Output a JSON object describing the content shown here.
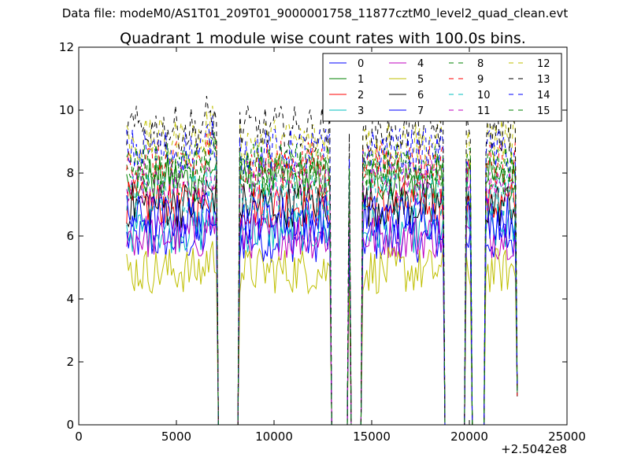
{
  "page": {
    "file_label": "Data file: modeM0/AS1T01_209T01_9000001758_11877cztM0_level2_quad_clean.evt"
  },
  "chart_data": {
    "type": "line",
    "title": "Quadrant 1 module wise count rates with 100.0s bins.",
    "xlabel": "",
    "ylabel": "",
    "x_offset_label": "+2.5042e8",
    "xlim": [
      0,
      25000
    ],
    "ylim": [
      0,
      12
    ],
    "x_ticks": [
      0,
      5000,
      10000,
      15000,
      20000,
      25000
    ],
    "y_ticks": [
      0,
      2,
      4,
      6,
      8,
      10,
      12
    ],
    "grid": false,
    "legend_position": "top-right",
    "legend_columns": 4,
    "segments": [
      [
        2450,
        7050
      ],
      [
        8250,
        12850
      ],
      [
        14550,
        18650
      ],
      [
        19850,
        20050
      ],
      [
        20850,
        22450
      ]
    ],
    "spikes": [
      13850,
      19750
    ],
    "series": [
      {
        "name": "0",
        "color": "#0000ff",
        "dash": "solid",
        "base": 5.9
      },
      {
        "name": "1",
        "color": "#008000",
        "dash": "solid",
        "base": 7.8
      },
      {
        "name": "2",
        "color": "#ff0000",
        "dash": "solid",
        "base": 7.0
      },
      {
        "name": "3",
        "color": "#00bfbf",
        "dash": "solid",
        "base": 6.2
      },
      {
        "name": "4",
        "color": "#bf00bf",
        "dash": "solid",
        "base": 6.0
      },
      {
        "name": "5",
        "color": "#bfbf00",
        "dash": "solid",
        "base": 4.9
      },
      {
        "name": "6",
        "color": "#000000",
        "dash": "solid",
        "base": 7.0
      },
      {
        "name": "7",
        "color": "#0000ff",
        "dash": "solid",
        "base": 6.6
      },
      {
        "name": "8",
        "color": "#008000",
        "dash": "dashed",
        "base": 8.0
      },
      {
        "name": "9",
        "color": "#ff0000",
        "dash": "dashed",
        "base": 8.3
      },
      {
        "name": "10",
        "color": "#00bfbf",
        "dash": "dashed",
        "base": 7.3
      },
      {
        "name": "11",
        "color": "#bf00bf",
        "dash": "dashed",
        "base": 7.7
      },
      {
        "name": "12",
        "color": "#bfbf00",
        "dash": "dashed",
        "base": 9.0
      },
      {
        "name": "13",
        "color": "#000000",
        "dash": "dashed",
        "base": 9.4
      },
      {
        "name": "14",
        "color": "#0000ff",
        "dash": "dashed",
        "base": 8.7
      },
      {
        "name": "15",
        "color": "#008000",
        "dash": "dashed",
        "base": 8.2
      }
    ]
  }
}
